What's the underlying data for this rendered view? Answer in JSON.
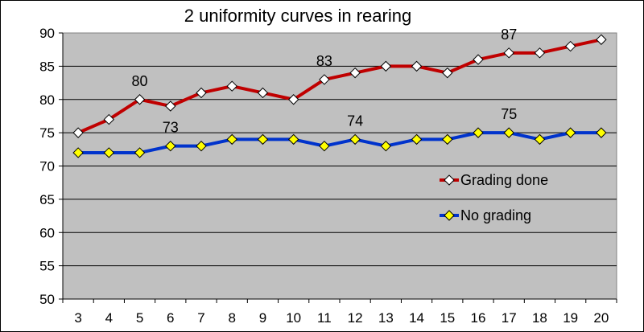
{
  "chart_data": {
    "type": "line",
    "title": "2 uniformity curves in rearing",
    "xlabel": "",
    "ylabel": "",
    "x": [
      3,
      4,
      5,
      6,
      7,
      8,
      9,
      10,
      11,
      12,
      13,
      14,
      15,
      16,
      17,
      18,
      19,
      20
    ],
    "ylim": [
      50,
      90
    ],
    "yticks": [
      50,
      55,
      60,
      65,
      70,
      75,
      80,
      85,
      90
    ],
    "grid": "horizontal",
    "legend_position": "right",
    "series": [
      {
        "name": "Grading done",
        "color": "#c00000",
        "marker": "diamond",
        "marker_fill": "#ffffff",
        "values": [
          75,
          77,
          80,
          79,
          81,
          82,
          81,
          80,
          83,
          84,
          85,
          85,
          84,
          86,
          87,
          87,
          88,
          89
        ]
      },
      {
        "name": "No grading",
        "color": "#0033cc",
        "marker": "diamond",
        "marker_fill": "#ffff00",
        "values": [
          72,
          72,
          72,
          73,
          73,
          74,
          74,
          74,
          73,
          74,
          73,
          74,
          74,
          75,
          75,
          74,
          75,
          75
        ]
      }
    ],
    "annotations": [
      {
        "series": 0,
        "x": 5,
        "text": "80"
      },
      {
        "series": 0,
        "x": 11,
        "text": "83"
      },
      {
        "series": 0,
        "x": 17,
        "text": "87"
      },
      {
        "series": 1,
        "x": 6,
        "text": "73"
      },
      {
        "series": 1,
        "x": 12,
        "text": "74"
      },
      {
        "series": 1,
        "x": 17,
        "text": "75"
      }
    ],
    "plot_background": "#c0c0c0"
  }
}
